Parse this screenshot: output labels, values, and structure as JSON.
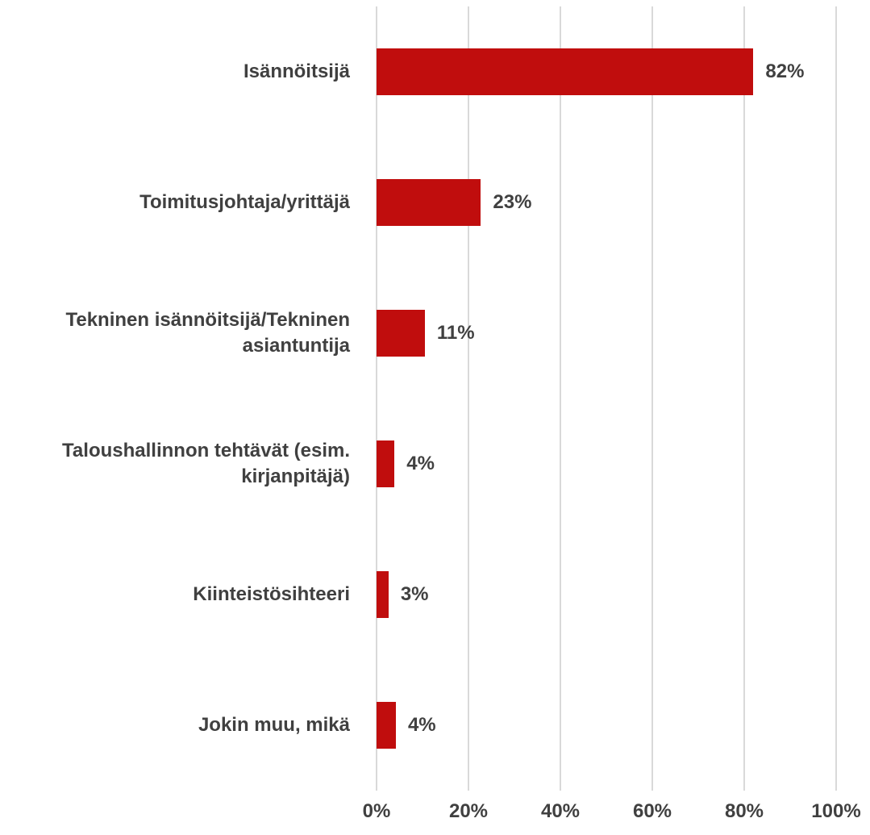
{
  "chart_data": {
    "type": "bar",
    "orientation": "horizontal",
    "categories": [
      "Isännöitsijä",
      "Toimitusjohtaja/yrittäjä",
      "Tekninen isännöitsijä/Tekninen asiantuntija",
      "Taloushallinnon tehtävät (esim. kirjanpitäjä)",
      "Kiinteistösihteeri",
      "Jokin muu, mikä"
    ],
    "values": [
      82,
      22.7,
      10.5,
      3.9,
      2.6,
      4.2
    ],
    "value_labels": [
      "82%",
      "23%",
      "11%",
      "4%",
      "3%",
      "4%"
    ],
    "color": "#c00d0d",
    "xlim": [
      0,
      100
    ],
    "xticks": [
      {
        "value": 0,
        "label": "0%"
      },
      {
        "value": 20,
        "label": "20%"
      },
      {
        "value": 40,
        "label": "40%"
      },
      {
        "value": 60,
        "label": "60%"
      },
      {
        "value": 80,
        "label": "80%"
      },
      {
        "value": 100,
        "label": "100%"
      }
    ],
    "grid": true
  }
}
